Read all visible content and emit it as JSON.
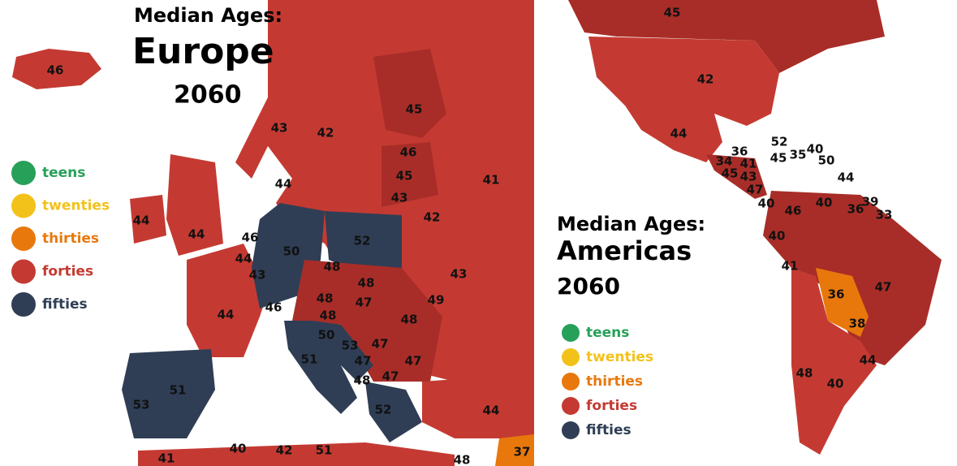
{
  "europe": {
    "title": "Median Ages:",
    "region": "Europe",
    "year": "2060",
    "legend": [
      {
        "label": "teens",
        "color": "#27a05a"
      },
      {
        "label": "twenties",
        "color": "#f2c21a"
      },
      {
        "label": "thirties",
        "color": "#e8780c"
      },
      {
        "label": "forties",
        "color": "#c43a32"
      },
      {
        "label": "fifties",
        "color": "#2f3e55"
      }
    ],
    "labels": [
      46,
      43,
      42,
      45,
      46,
      45,
      43,
      44,
      41,
      42,
      44,
      44,
      46,
      44,
      43,
      50,
      52,
      48,
      48,
      43,
      44,
      46,
      48,
      47,
      49,
      48,
      48,
      50,
      53,
      47,
      51,
      47,
      47,
      47,
      48,
      52,
      51,
      53,
      44,
      41,
      40,
      42,
      51,
      48,
      37
    ]
  },
  "americas": {
    "title": "Median Ages:",
    "region": "Americas",
    "year": "2060",
    "legend": [
      {
        "label": "teens",
        "color": "#27a05a"
      },
      {
        "label": "twenties",
        "color": "#f2c21a"
      },
      {
        "label": "thirties",
        "color": "#e8780c"
      },
      {
        "label": "forties",
        "color": "#c43a32"
      },
      {
        "label": "fifties",
        "color": "#2f3e55"
      }
    ],
    "labels": [
      45,
      42,
      44,
      52,
      36,
      34,
      41,
      45,
      43,
      47,
      40,
      45,
      35,
      40,
      50,
      44,
      40,
      39,
      36,
      33,
      46,
      40,
      41,
      47,
      36,
      38,
      44,
      48,
      40
    ]
  }
}
